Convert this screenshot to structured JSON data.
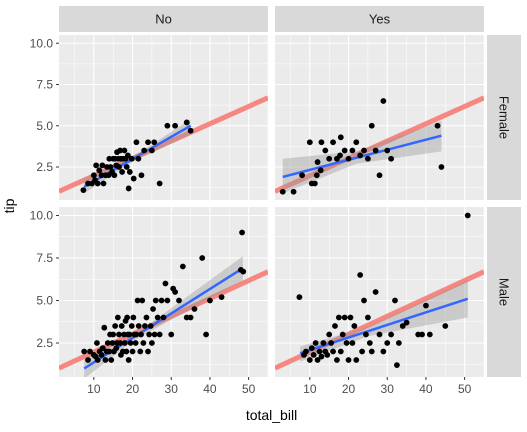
{
  "chart_data": {
    "type": "scatter",
    "facet_cols": [
      "No",
      "Yes"
    ],
    "facet_rows": [
      "Female",
      "Male"
    ],
    "xlabel": "total_bill",
    "ylabel": "tip",
    "xlim": [
      1,
      55
    ],
    "ylim": [
      0.5,
      10.5
    ],
    "x_ticks": [
      10,
      20,
      30,
      40,
      50
    ],
    "y_ticks": [
      2.5,
      5.0,
      7.5,
      10.0
    ],
    "grid": true,
    "colors": {
      "panel_bg": "#ebebeb",
      "strip_bg": "#d9d9d9",
      "grid": "#ffffff",
      "points": "#000000",
      "fit_line": "#3366ff",
      "fit_band": "#999999",
      "ref_line": "#f8766d"
    },
    "reference_line": {
      "intercept": 0.92,
      "slope": 0.105
    },
    "panels": [
      {
        "row": "Female",
        "col": "No",
        "fit": {
          "x": [
            7.5,
            35
          ],
          "y": [
            1.3,
            5.0
          ]
        },
        "band": {
          "x": [
            7.5,
            20,
            35
          ],
          "upper": [
            1.8,
            3.1,
            5.4
          ],
          "lower": [
            0.9,
            2.8,
            4.5
          ]
        },
        "points": [
          [
            7.3,
            1.1
          ],
          [
            8.5,
            1.5
          ],
          [
            9.5,
            1.5
          ],
          [
            10,
            2.0
          ],
          [
            10.3,
            1.7
          ],
          [
            10.6,
            2.6
          ],
          [
            11,
            1.5
          ],
          [
            11.4,
            2.3
          ],
          [
            12,
            2.0
          ],
          [
            12.2,
            2.6
          ],
          [
            12.5,
            1.5
          ],
          [
            13,
            2.0
          ],
          [
            13.4,
            2.5
          ],
          [
            13.8,
            2.0
          ],
          [
            14,
            3.0
          ],
          [
            14.3,
            2.5
          ],
          [
            14.7,
            2.2
          ],
          [
            15,
            3.0
          ],
          [
            15.3,
            2.0
          ],
          [
            15.5,
            3.0
          ],
          [
            15.8,
            2.6
          ],
          [
            16,
            3.4
          ],
          [
            16.3,
            3.0
          ],
          [
            16.5,
            2.5
          ],
          [
            16.8,
            3.5
          ],
          [
            17,
            3.0
          ],
          [
            17.3,
            2.2
          ],
          [
            17.6,
            3.0
          ],
          [
            17.9,
            3.5
          ],
          [
            18.2,
            3.0
          ],
          [
            18.5,
            2.5
          ],
          [
            18.8,
            3.2
          ],
          [
            19,
            1.2
          ],
          [
            19.3,
            2.2
          ],
          [
            19.8,
            3.0
          ],
          [
            20.3,
            1.8
          ],
          [
            21,
            4.0
          ],
          [
            21.5,
            3.0
          ],
          [
            22.3,
            2.0
          ],
          [
            23,
            3.5
          ],
          [
            24,
            4.0
          ],
          [
            25,
            3.5
          ],
          [
            25.6,
            4.0
          ],
          [
            27,
            1.5
          ],
          [
            29,
            5.0
          ],
          [
            31,
            5.0
          ],
          [
            34,
            5.2
          ],
          [
            35,
            4.7
          ]
        ]
      },
      {
        "row": "Female",
        "col": "Yes",
        "fit": {
          "x": [
            3,
            44
          ],
          "y": [
            1.9,
            4.4
          ]
        },
        "band": {
          "x": [
            3,
            22,
            44
          ],
          "upper": [
            3.0,
            3.45,
            5.3
          ],
          "lower": [
            0.9,
            2.7,
            3.45
          ]
        },
        "points": [
          [
            3,
            1.0
          ],
          [
            5.8,
            1.0
          ],
          [
            8,
            2.0
          ],
          [
            10,
            4.0
          ],
          [
            10.5,
            1.5
          ],
          [
            11.3,
            1.5
          ],
          [
            11.8,
            2.0
          ],
          [
            12,
            2.8
          ],
          [
            12.8,
            2.3
          ],
          [
            13,
            4.0
          ],
          [
            14,
            3.5
          ],
          [
            15,
            3.0
          ],
          [
            16,
            4.0
          ],
          [
            17,
            3.0
          ],
          [
            17.8,
            3.2
          ],
          [
            18,
            4.3
          ],
          [
            19,
            3.5
          ],
          [
            20,
            3.0
          ],
          [
            21,
            3.5
          ],
          [
            22,
            4.0
          ],
          [
            23,
            3.2
          ],
          [
            24,
            3.5
          ],
          [
            25,
            3.0
          ],
          [
            26,
            5.0
          ],
          [
            27,
            3.5
          ],
          [
            28,
            2.0
          ],
          [
            29,
            6.5
          ],
          [
            30,
            3.5
          ],
          [
            31,
            3.0
          ],
          [
            43,
            5.0
          ],
          [
            44,
            2.5
          ]
        ]
      },
      {
        "row": "Male",
        "col": "No",
        "fit": {
          "x": [
            7.5,
            48.5
          ],
          "y": [
            1.0,
            6.9
          ]
        },
        "band": {
          "x": [
            7.5,
            20,
            48.5
          ],
          "upper": [
            1.6,
            2.9,
            7.6
          ],
          "lower": [
            0.4,
            2.6,
            6.2
          ]
        },
        "points": [
          [
            7.5,
            2.0
          ],
          [
            8.5,
            1.5
          ],
          [
            9,
            2.0
          ],
          [
            10,
            1.8
          ],
          [
            10.5,
            1.7
          ],
          [
            10.8,
            2.5
          ],
          [
            11,
            1.5
          ],
          [
            11.5,
            2.0
          ],
          [
            12,
            1.8
          ],
          [
            12.3,
            2.2
          ],
          [
            12.7,
            3.4
          ],
          [
            13,
            1.5
          ],
          [
            13.3,
            2.0
          ],
          [
            13.6,
            2.5
          ],
          [
            14,
            2.0
          ],
          [
            14.2,
            3.0
          ],
          [
            14.5,
            1.5
          ],
          [
            14.8,
            2.5
          ],
          [
            15,
            3.0
          ],
          [
            15.2,
            2.0
          ],
          [
            15.5,
            3.5
          ],
          [
            15.8,
            2.2
          ],
          [
            16,
            2.5
          ],
          [
            16.2,
            4.0
          ],
          [
            16.5,
            3.0
          ],
          [
            16.8,
            2.5
          ],
          [
            17,
            1.8
          ],
          [
            17.2,
            3.5
          ],
          [
            17.5,
            2.0
          ],
          [
            17.8,
            3.0
          ],
          [
            18,
            2.5
          ],
          [
            18.2,
            3.8
          ],
          [
            18.4,
            2.0
          ],
          [
            18.6,
            4.0
          ],
          [
            18.8,
            3.0
          ],
          [
            19,
            1.5
          ],
          [
            19.2,
            3.0
          ],
          [
            19.5,
            2.5
          ],
          [
            19.8,
            3.5
          ],
          [
            20,
            2.0
          ],
          [
            20.2,
            4.0
          ],
          [
            20.5,
            3.0
          ],
          [
            20.8,
            2.5
          ],
          [
            21,
            3.0
          ],
          [
            21.3,
            5.0
          ],
          [
            21.6,
            3.5
          ],
          [
            22,
            2.0
          ],
          [
            22.2,
            3.0
          ],
          [
            22.5,
            5.0
          ],
          [
            22.8,
            2.5
          ],
          [
            23.2,
            3.5
          ],
          [
            23.6,
            4.0
          ],
          [
            24,
            2.0
          ],
          [
            24.3,
            3.0
          ],
          [
            24.7,
            3.5
          ],
          [
            25,
            2.5
          ],
          [
            25.3,
            4.5
          ],
          [
            25.7,
            3.0
          ],
          [
            26,
            5.0
          ],
          [
            26.5,
            4.0
          ],
          [
            27,
            3.0
          ],
          [
            27.5,
            5.0
          ],
          [
            28,
            4.0
          ],
          [
            28.5,
            6.0
          ],
          [
            29,
            5.0
          ],
          [
            30,
            3.0
          ],
          [
            30.5,
            5.7
          ],
          [
            31,
            5.5
          ],
          [
            32,
            5.0
          ],
          [
            33,
            7.0
          ],
          [
            34,
            4.0
          ],
          [
            35,
            4.0
          ],
          [
            36,
            4.5
          ],
          [
            38,
            7.5
          ],
          [
            39,
            3.0
          ],
          [
            40,
            5.0
          ],
          [
            43,
            5.2
          ],
          [
            48,
            6.8
          ],
          [
            48.3,
            9.0
          ],
          [
            48.6,
            6.7
          ]
        ]
      },
      {
        "row": "Male",
        "col": "Yes",
        "fit": {
          "x": [
            7.5,
            50.8
          ],
          "y": [
            1.9,
            5.1
          ]
        },
        "band": {
          "x": [
            7.5,
            25,
            50.8
          ],
          "upper": [
            2.3,
            3.45,
            6.2
          ],
          "lower": [
            1.4,
            2.9,
            4.0
          ]
        },
        "points": [
          [
            7.3,
            5.2
          ],
          [
            8.5,
            1.8
          ],
          [
            9,
            2.0
          ],
          [
            10,
            1.5
          ],
          [
            10.5,
            2.2
          ],
          [
            11,
            1.8
          ],
          [
            11.5,
            2.5
          ],
          [
            12,
            1.5
          ],
          [
            12.5,
            2.0
          ],
          [
            13,
            1.7
          ],
          [
            13.5,
            2.5
          ],
          [
            14,
            2.0
          ],
          [
            14.5,
            1.8
          ],
          [
            15,
            3.0
          ],
          [
            15.5,
            2.5
          ],
          [
            16,
            2.0
          ],
          [
            16.5,
            3.5
          ],
          [
            17,
            1.5
          ],
          [
            17.5,
            4.0
          ],
          [
            18,
            2.0
          ],
          [
            18.5,
            3.0
          ],
          [
            19,
            4.0
          ],
          [
            19.5,
            2.5
          ],
          [
            20,
            1.5
          ],
          [
            20.5,
            4.0
          ],
          [
            21,
            2.5
          ],
          [
            21.5,
            3.5
          ],
          [
            22,
            1.5
          ],
          [
            23,
            6.5
          ],
          [
            23.5,
            2.0
          ],
          [
            24,
            5.0
          ],
          [
            24.5,
            3.0
          ],
          [
            25,
            4.0
          ],
          [
            25.5,
            2.5
          ],
          [
            26,
            2.0
          ],
          [
            27,
            5.5
          ],
          [
            28,
            3.0
          ],
          [
            29,
            2.0
          ],
          [
            30,
            2.5
          ],
          [
            31,
            3.0
          ],
          [
            32,
            5.0
          ],
          [
            32.5,
            1.2
          ],
          [
            33,
            2.5
          ],
          [
            34,
            3.5
          ],
          [
            35,
            3.7
          ],
          [
            38,
            3.0
          ],
          [
            39,
            3.0
          ],
          [
            40,
            4.7
          ],
          [
            41,
            3.0
          ],
          [
            45,
            3.5
          ],
          [
            50.8,
            10.0
          ]
        ]
      }
    ]
  }
}
